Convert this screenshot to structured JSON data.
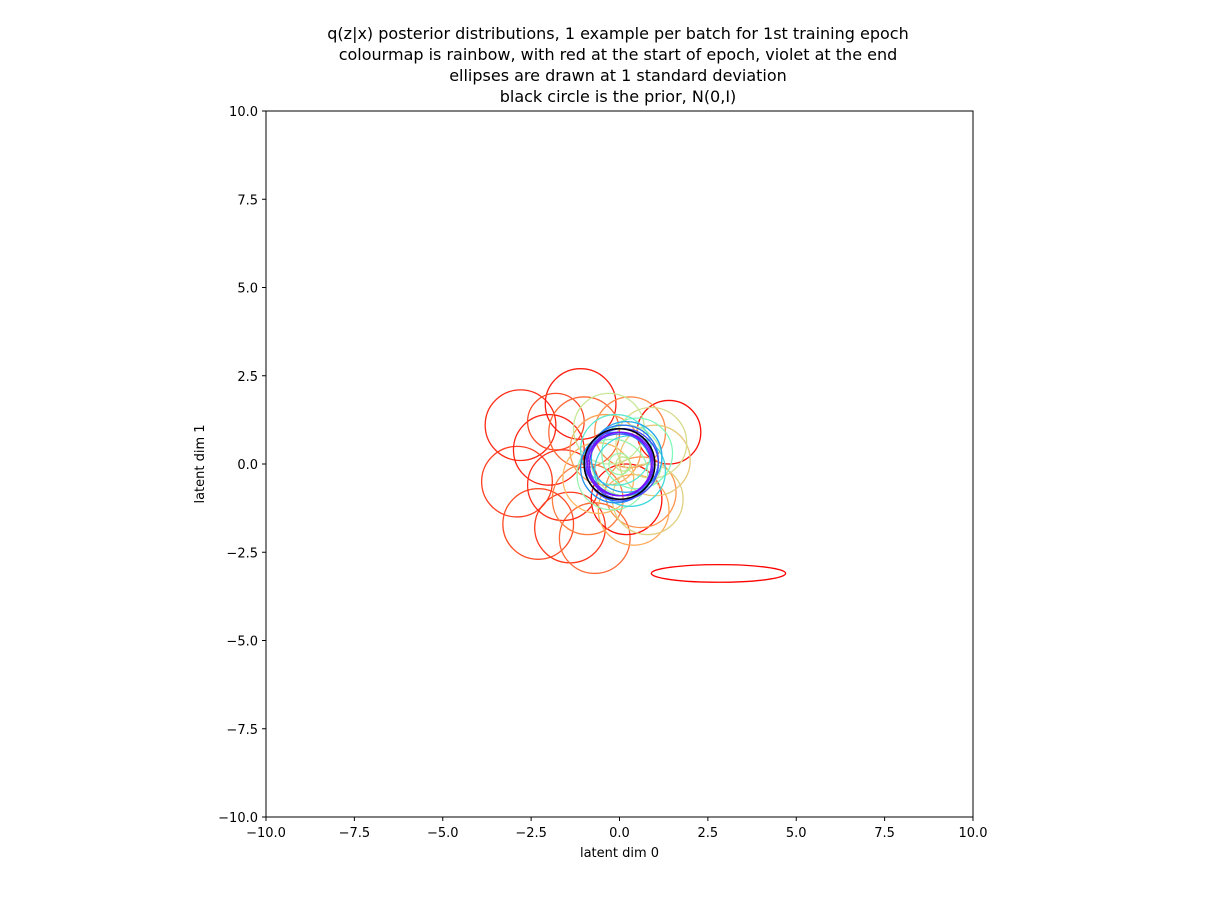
{
  "chart_data": {
    "type": "scatter",
    "title_lines": [
      "q(z|x) posterior distributions, 1 example per batch for 1st training epoch",
      "colourmap is rainbow, with red at the start of epoch, violet at the end",
      "ellipses are drawn at 1 standard deviation",
      "black circle is the prior, N(0,I)"
    ],
    "xlabel": "latent dim 0",
    "ylabel": "latent dim 1",
    "xlim": [
      -10,
      10
    ],
    "ylim": [
      -10,
      10
    ],
    "xticks": [
      -10,
      -7.5,
      -5,
      -2.5,
      0,
      2.5,
      5,
      7.5,
      10
    ],
    "yticks": [
      -10,
      -7.5,
      -5,
      -2.5,
      0,
      2.5,
      5,
      7.5,
      10
    ],
    "xtick_labels": [
      "−10.0",
      "−7.5",
      "−5.0",
      "−2.5",
      "0.0",
      "2.5",
      "5.0",
      "7.5",
      "10.0"
    ],
    "ytick_labels": [
      "−10.0",
      "−7.5",
      "−5.0",
      "−2.5",
      "0.0",
      "2.5",
      "5.0",
      "7.5",
      "10.0"
    ],
    "grid": false,
    "colormap": "rainbow",
    "prior": {
      "mean": [
        0,
        0
      ],
      "std": [
        1,
        1
      ],
      "color": "#000000"
    },
    "ellipses": [
      {
        "mean": [
          2.8,
          -3.1
        ],
        "std": [
          1.9,
          0.25
        ],
        "color": "#ff0000"
      },
      {
        "mean": [
          -2.8,
          1.1
        ],
        "std": [
          1.0,
          1.0
        ],
        "color": "#ff2a15"
      },
      {
        "mean": [
          -1.1,
          1.7
        ],
        "std": [
          1.0,
          1.0
        ],
        "color": "#ff1c0e"
      },
      {
        "mean": [
          1.4,
          0.9
        ],
        "std": [
          0.9,
          0.9
        ],
        "color": "#ff0d07"
      },
      {
        "mean": [
          -2.9,
          -0.5
        ],
        "std": [
          1.0,
          1.0
        ],
        "color": "#ff3f20"
      },
      {
        "mean": [
          -2.3,
          -1.7
        ],
        "std": [
          1.0,
          1.0
        ],
        "color": "#ff4d27"
      },
      {
        "mean": [
          -1.4,
          -1.8
        ],
        "std": [
          1.0,
          1.0
        ],
        "color": "#ff3a1d"
      },
      {
        "mean": [
          -0.7,
          -2.1
        ],
        "std": [
          1.0,
          1.0
        ],
        "color": "#ff6a36"
      },
      {
        "mean": [
          0.2,
          -1.0
        ],
        "std": [
          1.0,
          1.0
        ],
        "color": "#ff0f08"
      },
      {
        "mean": [
          -2.0,
          0.4
        ],
        "std": [
          1.0,
          1.0
        ],
        "color": "#ff2413"
      },
      {
        "mean": [
          -1.6,
          -0.6
        ],
        "std": [
          1.0,
          1.0
        ],
        "color": "#ff3019"
      },
      {
        "mean": [
          -1.8,
          1.2
        ],
        "std": [
          0.8,
          0.8
        ],
        "color": "#ff4a26"
      },
      {
        "mean": [
          -1.0,
          0.9
        ],
        "std": [
          1.0,
          1.0
        ],
        "color": "#ff6a37"
      },
      {
        "mean": [
          -0.9,
          -1.0
        ],
        "std": [
          1.0,
          1.0
        ],
        "color": "#ff7d40"
      },
      {
        "mean": [
          0.3,
          0.9
        ],
        "std": [
          1.0,
          1.0
        ],
        "color": "#ff8b48"
      },
      {
        "mean": [
          0.6,
          -0.8
        ],
        "std": [
          1.0,
          1.0
        ],
        "color": "#ff954d"
      },
      {
        "mean": [
          -0.4,
          0.4
        ],
        "std": [
          1.0,
          1.0
        ],
        "color": "#ffa053"
      },
      {
        "mean": [
          0.4,
          -1.3
        ],
        "std": [
          1.0,
          1.0
        ],
        "color": "#ffab5a"
      },
      {
        "mean": [
          0.8,
          -1.0
        ],
        "std": [
          1.0,
          1.0
        ],
        "color": "#e0d080"
      },
      {
        "mean": [
          1.0,
          0.1
        ],
        "std": [
          1.0,
          1.0
        ],
        "color": "#e8c878"
      },
      {
        "mean": [
          -0.6,
          -0.4
        ],
        "std": [
          1.0,
          1.0
        ],
        "color": "#ffb862"
      },
      {
        "mean": [
          0.9,
          0.6
        ],
        "std": [
          1.0,
          1.0
        ],
        "color": "#d8dc8c"
      },
      {
        "mean": [
          -0.3,
          1.0
        ],
        "std": [
          1.0,
          1.0
        ],
        "color": "#c8e898"
      },
      {
        "mean": [
          0.2,
          0.1
        ],
        "std": [
          1.0,
          1.0
        ],
        "color": "#b0f0a4"
      },
      {
        "mean": [
          -0.2,
          -0.3
        ],
        "std": [
          1.0,
          1.0
        ],
        "color": "#98f4b0"
      },
      {
        "mean": [
          0.5,
          0.3
        ],
        "std": [
          1.0,
          1.0
        ],
        "color": "#80f8bc"
      },
      {
        "mean": [
          -0.1,
          0.4
        ],
        "std": [
          1.0,
          1.0
        ],
        "color": "#5ce8d0"
      },
      {
        "mean": [
          0.3,
          -0.2
        ],
        "std": [
          1.0,
          1.0
        ],
        "color": "#40d8dc"
      },
      {
        "mean": [
          0.0,
          0.0
        ],
        "std": [
          1.0,
          1.0
        ],
        "color": "#2cc4e8"
      },
      {
        "mean": [
          0.2,
          0.2
        ],
        "std": [
          1.0,
          1.0
        ],
        "color": "#22a8ee"
      },
      {
        "mean": [
          -0.1,
          -0.1
        ],
        "std": [
          1.0,
          1.0
        ],
        "color": "#2090f2"
      },
      {
        "mean": [
          0.1,
          0.1
        ],
        "std": [
          1.0,
          1.0
        ],
        "color": "#2a74f6"
      },
      {
        "mean": [
          0.0,
          -0.1
        ],
        "std": [
          0.95,
          0.95
        ],
        "color": "#3a5af8"
      },
      {
        "mean": [
          0.1,
          0.0
        ],
        "std": [
          1.0,
          1.0
        ],
        "color": "#4c40fa"
      },
      {
        "mean": [
          0.0,
          0.05
        ],
        "std": [
          0.95,
          0.95
        ],
        "color": "#5c2cfc"
      },
      {
        "mean": [
          0.05,
          0.0
        ],
        "std": [
          0.9,
          0.9
        ],
        "color": "#6a1cfd"
      },
      {
        "mean": [
          0.0,
          0.0
        ],
        "std": [
          0.9,
          0.9
        ],
        "color": "#7710fe"
      },
      {
        "mean": [
          0.0,
          0.0
        ],
        "std": [
          0.3,
          0.3
        ],
        "color": "#a0f4a8"
      },
      {
        "mean": [
          0.1,
          0.0
        ],
        "std": [
          0.2,
          0.2
        ],
        "color": "#c0e890"
      }
    ]
  }
}
